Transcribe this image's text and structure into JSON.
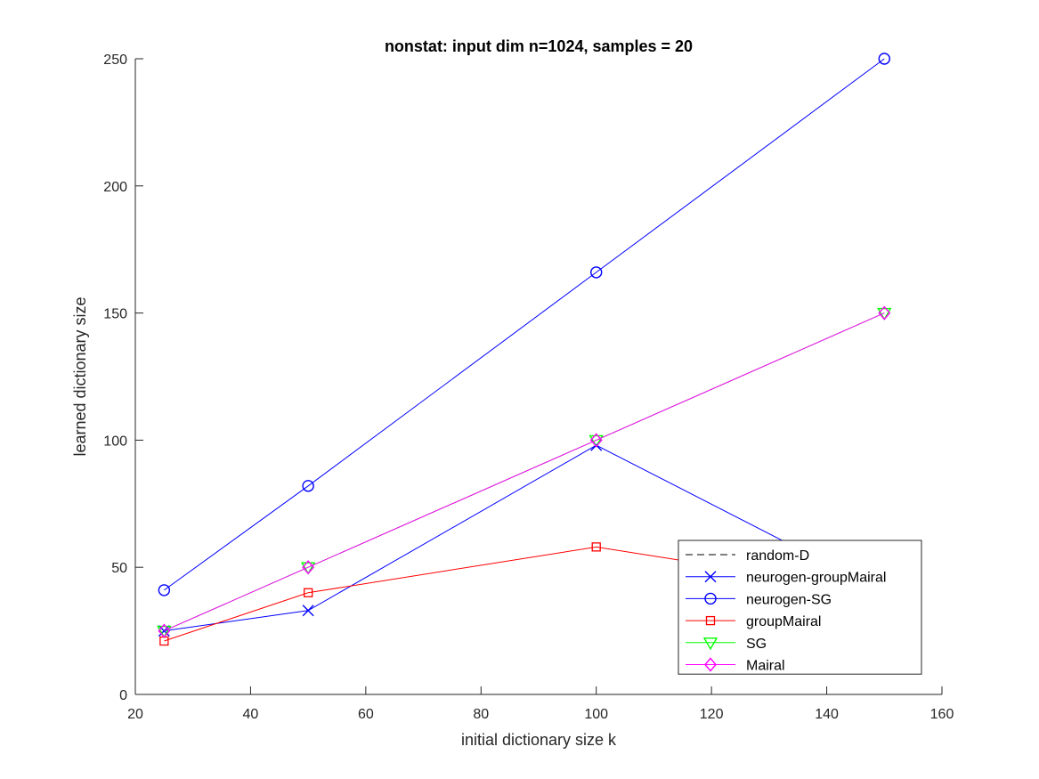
{
  "chart_data": {
    "type": "line",
    "title": "nonstat: input dim n=1024, samples = 20",
    "xlabel": "initial dictionary size k",
    "ylabel": "learned dictionary size",
    "xlim": [
      20,
      160
    ],
    "ylim": [
      0,
      250
    ],
    "xticks": [
      "20",
      "40",
      "60",
      "80",
      "100",
      "120",
      "140",
      "160"
    ],
    "yticks": [
      "0",
      "50",
      "100",
      "150",
      "200",
      "250"
    ],
    "grid": false,
    "legend_location": "bottom-right",
    "x": [
      25,
      50,
      100,
      150
    ],
    "series": [
      {
        "name": "random-D",
        "values": [
          null,
          null,
          null,
          null
        ],
        "color": "#000000",
        "linestyle": "dashed",
        "marker": "none"
      },
      {
        "name": "neurogen-groupMairal",
        "values": [
          25,
          33,
          98,
          40
        ],
        "color": "#0000ff",
        "linestyle": "solid",
        "marker": "x"
      },
      {
        "name": "neurogen-SG",
        "values": [
          41,
          82,
          166,
          250
        ],
        "color": "#0000ff",
        "linestyle": "solid",
        "marker": "circle"
      },
      {
        "name": "groupMairal",
        "values": [
          21,
          40,
          58,
          40
        ],
        "color": "#ff0000",
        "linestyle": "solid",
        "marker": "square"
      },
      {
        "name": "SG",
        "values": [
          25,
          50,
          100,
          150
        ],
        "color": "#00ff00",
        "linestyle": "solid",
        "marker": "triangle-down"
      },
      {
        "name": "Mairal",
        "values": [
          25,
          50,
          100,
          150
        ],
        "color": "#ff00ff",
        "linestyle": "solid",
        "marker": "diamond"
      }
    ]
  }
}
